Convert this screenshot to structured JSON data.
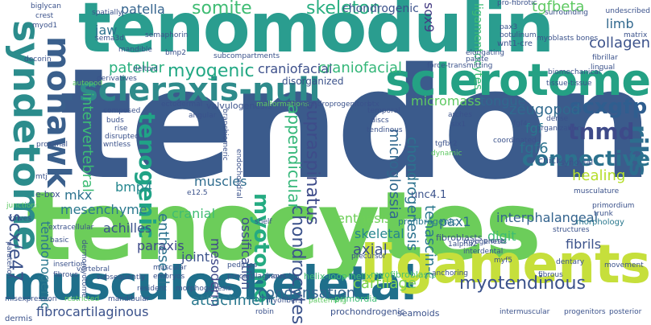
{
  "words": [
    {
      "text": "tendon",
      "color": "#3b5b8c"
    },
    {
      "text": "tenocytes",
      "color": "#6ccd5a"
    },
    {
      "text": "tenomodulin",
      "color": "#2a9d8f"
    },
    {
      "text": "musculoskeletal",
      "color": "#1f6f8b"
    },
    {
      "text": "scleraxis-null",
      "color": "#2e8b8b"
    },
    {
      "text": "sclerotome",
      "color": "#24a184"
    },
    {
      "text": "ligaments",
      "color": "#c6df3b"
    },
    {
      "text": "syndetome",
      "color": "#2b8c8c"
    },
    {
      "text": "mohawk",
      "color": "#3a5f8c"
    },
    {
      "text": "scxgfp",
      "color": "#2f5e8f"
    },
    {
      "text": "fibromodulin",
      "color": "#2d6d8e"
    },
    {
      "text": "ribs",
      "color": "#3e4a89"
    },
    {
      "text": "tnmd",
      "color": "#2c728e"
    },
    {
      "text": "connective",
      "color": "#3fbc73"
    },
    {
      "text": "somite",
      "color": "#28ae80"
    },
    {
      "text": "skeleton",
      "color": "#22a884"
    },
    {
      "text": "myogenic",
      "color": "#3b528b"
    },
    {
      "text": "chondrogenic",
      "color": "#5ec962"
    },
    {
      "text": "tgfbeta",
      "color": "#31688e"
    },
    {
      "text": "limb",
      "color": "#3b528b"
    },
    {
      "text": "collagen",
      "color": "#2ab07f"
    },
    {
      "text": "patellar",
      "color": "#3c4f8a"
    },
    {
      "text": "craniofacial",
      "color": "#35b779"
    },
    {
      "text": "tenogenic",
      "color": "#20a386"
    },
    {
      "text": "myotome",
      "color": "#25ab82"
    },
    {
      "text": "chondrocytes",
      "color": "#3b528b"
    },
    {
      "text": "chondrogenesis",
      "color": "#2c728e"
    },
    {
      "text": "supraspinatus",
      "color": "#3e4c8a"
    },
    {
      "text": "microglossia",
      "color": "#31688e"
    },
    {
      "text": "fgf6",
      "color": "#2c728e"
    },
    {
      "text": "fgf",
      "color": "#2a788e"
    },
    {
      "text": "zeugopod",
      "color": "#306a8e"
    },
    {
      "text": "micromass",
      "color": "#5ec962"
    },
    {
      "text": "tongue",
      "color": "#31688e"
    },
    {
      "text": "healing",
      "color": "#b5de2b"
    },
    {
      "text": "mkx",
      "color": "#2c728e"
    },
    {
      "text": "bmp4",
      "color": "#24868e"
    },
    {
      "text": "mesenchyme",
      "color": "#2a788e"
    },
    {
      "text": "muscles",
      "color": "#2f6c8e"
    },
    {
      "text": "achilles",
      "color": "#3b528b"
    },
    {
      "text": "cranial",
      "color": "#3fbc73"
    },
    {
      "text": "appendicular",
      "color": "#35b779"
    },
    {
      "text": "enthesis",
      "color": "#6ece58"
    },
    {
      "text": "pax1",
      "color": "#2e6e8e"
    },
    {
      "text": "digit",
      "color": "#3dbc74"
    },
    {
      "text": "interphalangeal",
      "color": "#33638d"
    },
    {
      "text": "skeletal",
      "color": "#25858e"
    },
    {
      "text": "axial",
      "color": "#3b528b"
    },
    {
      "text": "fibrils",
      "color": "#3b528b"
    },
    {
      "text": "tenascin-c",
      "color": "#2a788e"
    },
    {
      "text": "paraxis",
      "color": "#3e4a89"
    },
    {
      "text": "joint",
      "color": "#3b528b"
    },
    {
      "text": "mesoderm",
      "color": "#3f4889"
    },
    {
      "text": "ossification",
      "color": "#3c4f8a"
    },
    {
      "text": "entheseal",
      "color": "#2c728e"
    },
    {
      "text": "scx/e47",
      "color": "#3b528b"
    },
    {
      "text": "intervertebral",
      "color": "#3dbc74"
    },
    {
      "text": "cartilage",
      "color": "#7ad151"
    },
    {
      "text": "myotendinous",
      "color": "#3b528b"
    },
    {
      "text": "attachment",
      "color": "#2a788e"
    },
    {
      "text": "condensation",
      "color": "#33638d"
    },
    {
      "text": "fibrocartilaginous",
      "color": "#3b528b"
    },
    {
      "text": "tendonogenic",
      "color": "#2a788e"
    },
    {
      "text": "jaw",
      "color": "#2c728e"
    },
    {
      "text": "patella",
      "color": "#33638d"
    },
    {
      "text": "sox9",
      "color": "#443a83"
    },
    {
      "text": "ligamentocytes",
      "color": "#3dbc74"
    },
    {
      "text": "unc4.1",
      "color": "#3b528b"
    },
    {
      "text": "helix-loop-helix",
      "color": "#3fbc73"
    },
    {
      "text": "profibrogenic",
      "color": "#2a788e"
    },
    {
      "text": "myofibroblasts",
      "color": "#4ac16d"
    },
    {
      "text": "e-box",
      "color": "#3b528b"
    },
    {
      "text": "valvulogenesis",
      "color": "#3b528b"
    },
    {
      "text": "ectodermal",
      "color": "#3b528b"
    },
    {
      "text": "disorganized",
      "color": "#3b528b"
    },
    {
      "text": "fibroblasts",
      "color": "#3b528b"
    },
    {
      "text": "primordia",
      "color": "#3dbc74"
    },
    {
      "text": "seamoids",
      "color": "#3b528b"
    },
    {
      "text": "prochondrogenic",
      "color": "#3b528b"
    },
    {
      "text": "robin",
      "color": "#3b528b"
    },
    {
      "text": "dermis",
      "color": "#3b528b"
    },
    {
      "text": "misexpression",
      "color": "#3b528b"
    },
    {
      "text": "restricted",
      "color": "#5ec962"
    },
    {
      "text": "mandibular",
      "color": "#3b528b"
    },
    {
      "text": "muscular",
      "color": "#3b528b"
    },
    {
      "text": "embryos",
      "color": "#3b528b"
    },
    {
      "text": "vertebral",
      "color": "#3b528b"
    },
    {
      "text": "resident",
      "color": "#3b528b"
    },
    {
      "text": "morphogenesis",
      "color": "#3b528b"
    },
    {
      "text": "annulus",
      "color": "#3b528b"
    },
    {
      "text": "precursor",
      "color": "#3b528b"
    },
    {
      "text": "patterning",
      "color": "#5ec962"
    },
    {
      "text": "myofibers",
      "color": "#3b528b"
    },
    {
      "text": "anchoring",
      "color": "#3b528b"
    },
    {
      "text": "fibrous",
      "color": "#3b528b"
    },
    {
      "text": "interdental",
      "color": "#3b528b"
    },
    {
      "text": "myf5",
      "color": "#3b528b"
    },
    {
      "text": "1alpha2",
      "color": "#3b528b"
    },
    {
      "text": "pierre",
      "color": "#3b528b"
    },
    {
      "text": "myogenesis",
      "color": "#3b528b"
    },
    {
      "text": "morphology",
      "color": "#2a788e"
    },
    {
      "text": "primordium",
      "color": "#3b528b"
    },
    {
      "text": "trunk",
      "color": "#3b528b"
    },
    {
      "text": "structures",
      "color": "#3b528b"
    },
    {
      "text": "musculature",
      "color": "#3b528b"
    },
    {
      "text": "synovial",
      "color": "#3b528b"
    },
    {
      "text": "chick",
      "color": "#3b528b"
    },
    {
      "text": "fgf4",
      "color": "#3b528b"
    },
    {
      "text": "dense",
      "color": "#3b528b"
    },
    {
      "text": "organization",
      "color": "#3b528b"
    },
    {
      "text": "tissue-tissue",
      "color": "#3b528b"
    },
    {
      "text": "biomechanical",
      "color": "#3b528b"
    },
    {
      "text": "fibrillar",
      "color": "#3b528b"
    },
    {
      "text": "lingual",
      "color": "#3b528b"
    },
    {
      "text": "matrix",
      "color": "#3b528b"
    },
    {
      "text": "undescribed",
      "color": "#3b528b"
    },
    {
      "text": "bones",
      "color": "#3b528b"
    },
    {
      "text": "surrounding",
      "color": "#3b528b"
    },
    {
      "text": "pro-fibrotic",
      "color": "#3b528b"
    },
    {
      "text": "wnt1-cre",
      "color": "#3b528b"
    },
    {
      "text": "elongating",
      "color": "#3b528b"
    },
    {
      "text": "force-transmitting",
      "color": "#3b528b"
    },
    {
      "text": "subcompartments",
      "color": "#3b528b"
    },
    {
      "text": "deltoid",
      "color": "#3b528b"
    },
    {
      "text": "bmp2",
      "color": "#3b528b"
    },
    {
      "text": "mandible",
      "color": "#3b528b"
    },
    {
      "text": "autopod",
      "color": "#5ec962"
    },
    {
      "text": "derivatives",
      "color": "#3b528b"
    },
    {
      "text": "decorin",
      "color": "#3b528b"
    },
    {
      "text": "myod1",
      "color": "#3b528b"
    },
    {
      "text": "crest",
      "color": "#3b528b"
    },
    {
      "text": "biglycan",
      "color": "#3b528b"
    },
    {
      "text": "composed",
      "color": "#3b528b"
    },
    {
      "text": "buds",
      "color": "#3b528b"
    },
    {
      "text": "rise",
      "color": "#3b528b"
    },
    {
      "text": "disrupted",
      "color": "#3b528b"
    },
    {
      "text": "wntless",
      "color": "#3b528b"
    },
    {
      "text": "e12.5",
      "color": "#3b528b"
    },
    {
      "text": "proximal",
      "color": "#3b528b"
    },
    {
      "text": "mtj",
      "color": "#3b528b"
    },
    {
      "text": "junctions",
      "color": "#5ec962"
    },
    {
      "text": "valves",
      "color": "#3b528b"
    },
    {
      "text": "extracellular",
      "color": "#3b528b"
    },
    {
      "text": "basic",
      "color": "#3b528b"
    },
    {
      "text": "insertion",
      "color": "#3b528b"
    },
    {
      "text": "fibrous",
      "color": "#3b528b"
    },
    {
      "text": "paratenon",
      "color": "#3b528b"
    },
    {
      "text": "dermomyotome",
      "color": "#3b528b"
    },
    {
      "text": "subsequently",
      "color": "#3b528b"
    },
    {
      "text": "pedicles",
      "color": "#3b528b"
    },
    {
      "text": "precartilaginous",
      "color": "#3b528b"
    },
    {
      "text": "shelf",
      "color": "#3b528b"
    },
    {
      "text": "endochondral",
      "color": "#3b528b"
    },
    {
      "text": "branchiomeric",
      "color": "#3b528b"
    },
    {
      "text": "temporal",
      "color": "#3b528b"
    },
    {
      "text": "discs",
      "color": "#3b528b"
    },
    {
      "text": "tendinous",
      "color": "#3b528b"
    },
    {
      "text": "arches",
      "color": "#3b528b"
    },
    {
      "text": "six1",
      "color": "#3b528b"
    },
    {
      "text": "tgfbr2",
      "color": "#3b528b"
    },
    {
      "text": "coordinated",
      "color": "#3b528b"
    },
    {
      "text": "dynamic",
      "color": "#5ec962"
    },
    {
      "text": "angular",
      "color": "#3b528b"
    },
    {
      "text": "malformations",
      "color": "#5ec962"
    },
    {
      "text": "chondroprogenitors",
      "color": "#3b528b"
    },
    {
      "text": "btx",
      "color": "#3b528b"
    },
    {
      "text": "palate",
      "color": "#3b528b"
    },
    {
      "text": "botulinum",
      "color": "#3b528b"
    },
    {
      "text": "pax3",
      "color": "#3b528b"
    },
    {
      "text": "myoblasts",
      "color": "#3b528b"
    },
    {
      "text": "spatially",
      "color": "#3b528b"
    },
    {
      "text": "semaphorin",
      "color": "#3b528b"
    },
    {
      "text": "sema3d",
      "color": "#3b528b"
    },
    {
      "text": "intermuscular",
      "color": "#3b528b"
    },
    {
      "text": "progenitors",
      "color": "#3b528b"
    },
    {
      "text": "posterior",
      "color": "#3b528b"
    },
    {
      "text": "dentary",
      "color": "#3b528b"
    },
    {
      "text": "movement",
      "color": "#3b528b"
    }
  ]
}
